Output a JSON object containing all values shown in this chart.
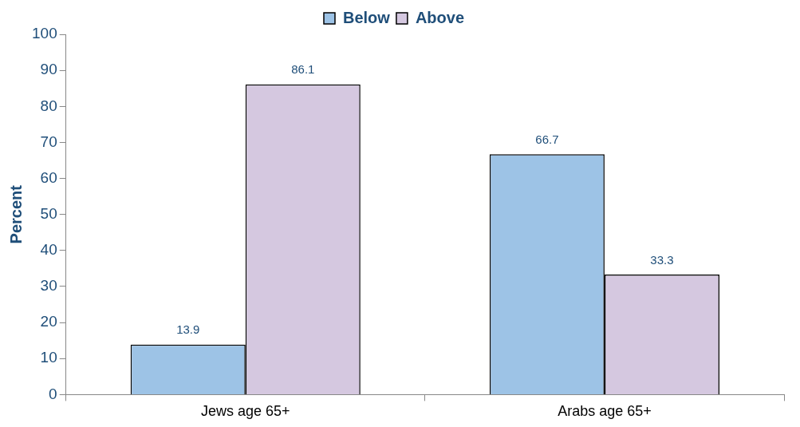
{
  "chart_data": {
    "type": "bar",
    "ylabel": "Percent",
    "categories": [
      "Jews age 65+",
      "Arabs age 65+"
    ],
    "series": [
      {
        "name": "Below",
        "color": "#9dc3e6",
        "values": [
          13.9,
          66.7
        ]
      },
      {
        "name": "Above",
        "color": "#d5c8e0",
        "values": [
          86.1,
          33.3
        ]
      }
    ],
    "ylim": [
      0,
      100
    ],
    "yticks": [
      0,
      10,
      20,
      30,
      40,
      50,
      60,
      70,
      80,
      90,
      100
    ],
    "grid": false,
    "legend": "top",
    "data_labels": true
  }
}
